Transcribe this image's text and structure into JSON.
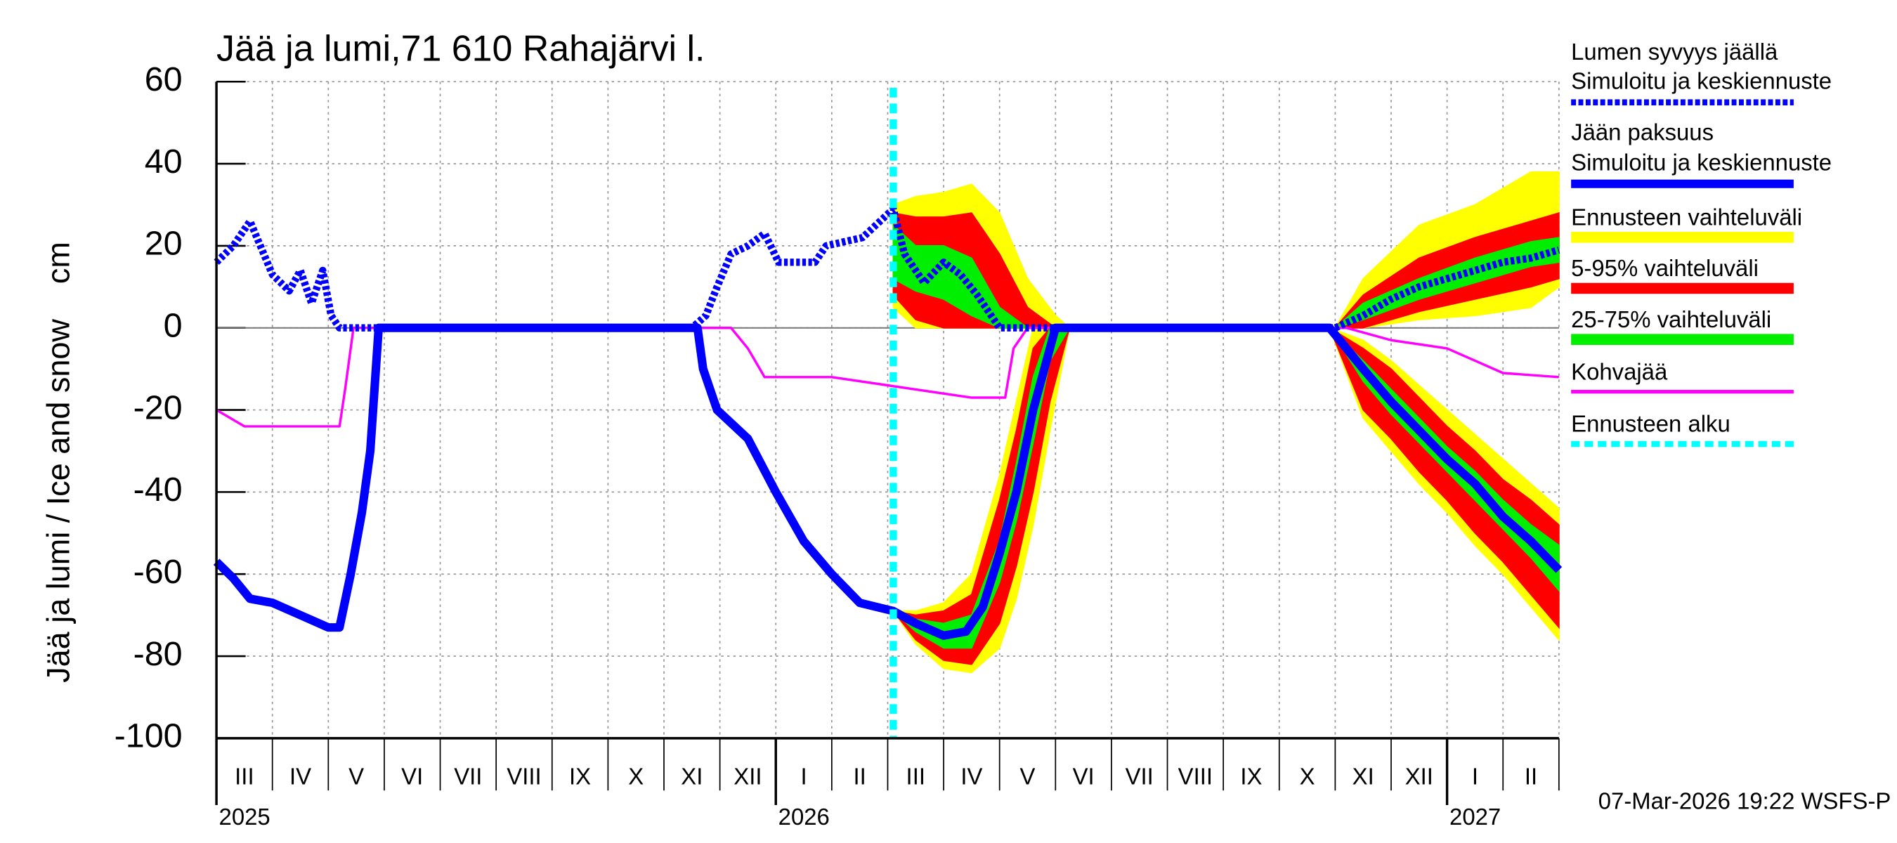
{
  "chart_data": {
    "type": "line",
    "title": "Jää ja lumi,71 610 Rahajärvi l.",
    "y_label": "Jää ja lumi / Ice and snow    cm",
    "footer": "07-Mar-2026 19:22 WSFS-P",
    "xlim": [
      0,
      24
    ],
    "ylim": [
      -100,
      60
    ],
    "yticks": [
      -100,
      -80,
      -60,
      -40,
      -20,
      0,
      20,
      40,
      60
    ],
    "grid": true,
    "months": [
      "III",
      "IV",
      "V",
      "VI",
      "VII",
      "VIII",
      "IX",
      "X",
      "XI",
      "XII",
      "I",
      "II",
      "III",
      "IV",
      "V",
      "VI",
      "VII",
      "VIII",
      "IX",
      "X",
      "XI",
      "XII",
      "I",
      "II"
    ],
    "years": [
      {
        "value": 0,
        "label": "2025"
      },
      {
        "value": 10,
        "label": "2026"
      },
      {
        "value": 22,
        "label": "2027"
      }
    ],
    "series": [
      {
        "legend_title": "Lumen syvyys jäällä",
        "name": "Simuloitu ja keskiennuste",
        "color": "#0000ff",
        "style": "dotted",
        "x": [
          0,
          0.3,
          0.6,
          1.0,
          1.3,
          1.5,
          1.7,
          1.9,
          2.05,
          2.2,
          8.5,
          8.75,
          8.95,
          9.2,
          9.5,
          9.8,
          10.05,
          10.7,
          10.9,
          11.55,
          12.1,
          12.3,
          12.65,
          13.0,
          13.3,
          13.6,
          14.0,
          20.0,
          20.5,
          21,
          21.5,
          22,
          22.5,
          23,
          23.5,
          24
        ],
        "values": [
          16,
          20,
          26,
          13,
          9,
          14,
          6,
          14,
          3,
          0,
          0,
          3,
          10,
          18,
          20,
          23,
          16,
          16,
          20,
          22,
          29,
          18,
          11,
          16,
          13,
          8,
          0,
          0,
          3,
          7,
          10,
          12,
          14,
          16,
          17,
          19
        ]
      },
      {
        "legend_title": "Jään paksuus",
        "name": "Simuloitu ja keskiennuste",
        "color": "#0000ff",
        "style": "solid",
        "x": [
          0,
          0.3,
          0.6,
          1.0,
          1.5,
          2.0,
          2.2,
          2.4,
          2.6,
          2.75,
          2.9,
          8.6,
          8.7,
          8.95,
          9.5,
          10.0,
          10.5,
          11.0,
          11.5,
          12.1,
          12.5,
          13.0,
          13.4,
          13.7,
          14.0,
          14.3,
          14.6,
          15.0,
          19.9,
          20.5,
          21,
          21.5,
          22,
          22.5,
          23,
          23.5,
          24
        ],
        "values": [
          -57,
          -61,
          -66,
          -67,
          -70,
          -73,
          -73,
          -60,
          -45,
          -30,
          0,
          0,
          -10,
          -20,
          -27,
          -40,
          -52,
          -60,
          -67,
          -69,
          -72,
          -75,
          -74,
          -68,
          -55,
          -40,
          -20,
          0,
          0,
          -10,
          -18,
          -25,
          -32,
          -38,
          -46,
          -52,
          -59
        ]
      },
      {
        "name": "Kohvajää",
        "color": "#ff00ff",
        "style": "thin",
        "x": [
          0,
          0.5,
          2.2,
          2.3,
          2.45,
          9.2,
          9.5,
          9.8,
          11.0,
          12.0,
          13.5,
          14.1,
          14.25,
          14.5,
          20.2,
          21,
          22,
          22.5,
          23,
          24
        ],
        "values": [
          -20,
          -24,
          -24,
          -15,
          0,
          0,
          -5,
          -12,
          -12,
          -14,
          -17,
          -17,
          -5,
          0,
          0,
          -3,
          -5,
          -8,
          -11,
          -12
        ]
      }
    ],
    "bands": [
      {
        "name": "Ennusteen vaihteluväli",
        "color": "#ffff00",
        "pieces": [
          {
            "x": [
              12.1,
              12.5,
              13,
              13.5,
              14,
              14.5,
              15,
              15.25
            ],
            "upper": [
              30,
              32,
              33,
              35,
              28,
              12,
              3,
              0
            ],
            "lower": [
              5,
              0,
              0,
              0,
              0,
              0,
              0,
              0
            ]
          },
          {
            "x": [
              20,
              20.5,
              21.5,
              22.5,
              23.5,
              24
            ],
            "upper": [
              0,
              12,
              25,
              30,
              38,
              38
            ],
            "lower": [
              0,
              0,
              2,
              3,
              5,
              10
            ]
          },
          {
            "x": [
              12.1,
              12.5,
              13,
              13.5,
              14,
              14.3,
              14.6,
              14.9,
              15.25
            ],
            "upper": [
              -69,
              -69,
              -67,
              -60,
              -36,
              -18,
              0,
              0,
              0
            ],
            "lower": [
              -69,
              -77,
              -83,
              -84,
              -78,
              -66,
              -48,
              -25,
              0
            ]
          },
          {
            "x": [
              19.9,
              20.5,
              21,
              21.5,
              22,
              22.5,
              23,
              23.5,
              24
            ],
            "upper": [
              0,
              -3,
              -8,
              -14,
              -20,
              -26,
              -32,
              -38,
              -44
            ],
            "lower": [
              0,
              -22,
              -30,
              -38,
              -45,
              -53,
              -60,
              -68,
              -76
            ]
          }
        ]
      },
      {
        "name": "5-95% vaihteluväli",
        "color": "#ff0000",
        "pieces": [
          {
            "x": [
              12.1,
              12.5,
              13,
              13.5,
              14,
              14.5,
              15,
              15.25
            ],
            "upper": [
              28,
              27,
              27,
              28,
              18,
              5,
              0,
              0
            ],
            "lower": [
              8,
              2,
              0,
              0,
              0,
              0,
              0,
              0
            ]
          },
          {
            "x": [
              20,
              20.5,
              21.5,
              22.5,
              23.5,
              24
            ],
            "upper": [
              0,
              8,
              17,
              22,
              26,
              28
            ],
            "lower": [
              0,
              0,
              4,
              7,
              10,
              12
            ]
          },
          {
            "x": [
              12.1,
              12.5,
              13,
              13.5,
              14,
              14.3,
              14.6,
              14.9,
              15.25
            ],
            "upper": [
              -69,
              -70,
              -69,
              -65,
              -42,
              -25,
              -5,
              0,
              0
            ],
            "lower": [
              -69,
              -76,
              -81,
              -82,
              -72,
              -58,
              -40,
              -18,
              0
            ]
          },
          {
            "x": [
              19.9,
              20.5,
              21,
              21.5,
              22,
              22.5,
              23,
              23.5,
              24
            ],
            "upper": [
              0,
              -5,
              -10,
              -17,
              -24,
              -30,
              -37,
              -42,
              -48
            ],
            "lower": [
              0,
              -20,
              -27,
              -35,
              -42,
              -50,
              -57,
              -65,
              -73
            ]
          }
        ]
      },
      {
        "name": "25-75% vaihteluväli",
        "color": "#00ee00",
        "pieces": [
          {
            "x": [
              12.1,
              12.5,
              13,
              13.5,
              14,
              14.5,
              15,
              15.25
            ],
            "upper": [
              25,
              20,
              20,
              17,
              5,
              0,
              0,
              0
            ],
            "lower": [
              12,
              9,
              7,
              3,
              0,
              0,
              0,
              0
            ]
          },
          {
            "x": [
              20,
              20.5,
              21.5,
              22.5,
              23.5,
              24
            ],
            "upper": [
              0,
              6,
              12,
              17,
              21,
              22
            ],
            "lower": [
              0,
              2,
              7,
              11,
              15,
              16
            ]
          },
          {
            "x": [
              12.1,
              12.5,
              13,
              13.5,
              14,
              14.3,
              14.6,
              14.9,
              15.25
            ],
            "upper": [
              -69,
              -71,
              -72,
              -70,
              -52,
              -33,
              -12,
              0,
              0
            ],
            "lower": [
              -69,
              -74,
              -78,
              -78,
              -62,
              -47,
              -28,
              -8,
              0
            ]
          },
          {
            "x": [
              19.9,
              20.5,
              21,
              21.5,
              22,
              22.5,
              23,
              23.5,
              24
            ],
            "upper": [
              0,
              -8,
              -15,
              -22,
              -29,
              -35,
              -42,
              -48,
              -53
            ],
            "lower": [
              0,
              -13,
              -21,
              -28,
              -35,
              -42,
              -49,
              -56,
              -64
            ]
          }
        ]
      }
    ],
    "forecast_start": {
      "value": 12.1,
      "label": "Ennusteen alku",
      "color": "#00ffff"
    }
  }
}
